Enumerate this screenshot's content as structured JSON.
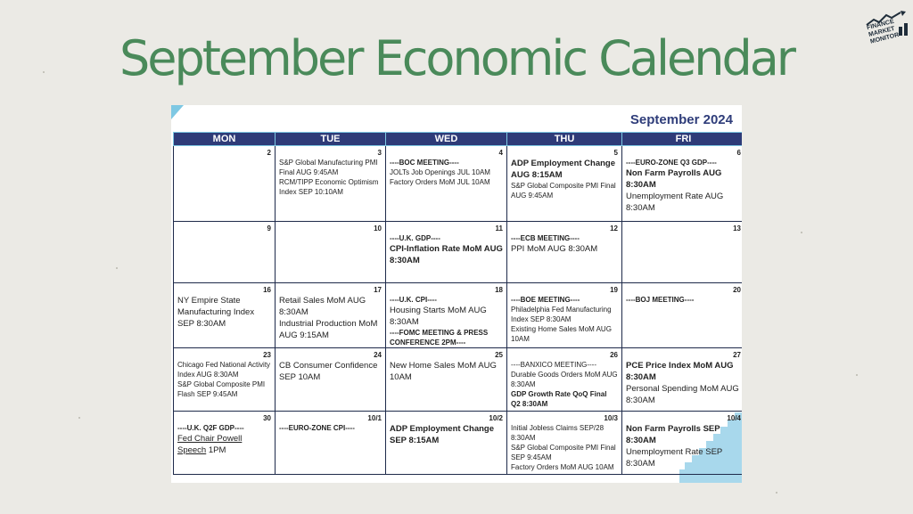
{
  "title": "September Economic Calendar",
  "logo": {
    "line1": "FINANCE",
    "line2": "MARKET",
    "line3": "MONITOR"
  },
  "calendar": {
    "month_label": "September 2024",
    "days": [
      "MON",
      "TUE",
      "WED",
      "THU",
      "FRI"
    ],
    "weeks": [
      [
        {
          "date": "2",
          "events": []
        },
        {
          "date": "3",
          "events": [
            {
              "text": "S&P Global Manufacturing PMI Final AUG 9:45AM",
              "style": "sm"
            },
            {
              "text": "RCM/TIPP Economic Optimism Index SEP 10:10AM",
              "style": "sm"
            }
          ]
        },
        {
          "date": "4",
          "events": [
            {
              "text": "----BOC MEETING----",
              "style": "sm-b"
            },
            {
              "text": "JOLTs Job Openings JUL 10AM",
              "style": "sm"
            },
            {
              "text": "Factory Orders MoM JUL 10AM",
              "style": "sm"
            }
          ]
        },
        {
          "date": "5",
          "events": [
            {
              "text": "ADP Employment Change AUG 8:15AM",
              "style": "lg-b"
            },
            {
              "text": "S&P Global Composite PMI Final AUG 9:45AM",
              "style": "sm"
            }
          ]
        },
        {
          "date": "6",
          "events": [
            {
              "text": "----EURO-ZONE Q3 GDP----",
              "style": "sm-b"
            },
            {
              "text": "Non Farm Payrolls AUG 8:30AM",
              "style": "lg-b"
            },
            {
              "text": "Unemployment Rate AUG 8:30AM",
              "style": "lg"
            }
          ]
        }
      ],
      [
        {
          "date": "9",
          "events": []
        },
        {
          "date": "10",
          "events": []
        },
        {
          "date": "11",
          "events": [
            {
              "text": "----U.K. GDP----",
              "style": "sm-b"
            },
            {
              "text": "CPI-Inflation Rate MoM AUG 8:30AM",
              "style": "lg-b"
            }
          ]
        },
        {
          "date": "12",
          "events": [
            {
              "text": "----ECB MEETING----",
              "style": "sm-b"
            },
            {
              "text": "PPI MoM AUG 8:30AM",
              "style": "lg"
            }
          ]
        },
        {
          "date": "13",
          "events": []
        }
      ],
      [
        {
          "date": "16",
          "events": [
            {
              "text": "NY Empire State Manufacturing Index SEP 8:30AM",
              "style": "lg"
            }
          ]
        },
        {
          "date": "17",
          "events": [
            {
              "text": "Retail Sales MoM AUG 8:30AM",
              "style": "lg"
            },
            {
              "text": "Industrial Production MoM AUG 9:15AM",
              "style": "lg"
            }
          ]
        },
        {
          "date": "18",
          "events": [
            {
              "text": "----U.K. CPI----",
              "style": "sm-b"
            },
            {
              "text": "Housing Starts MoM AUG 8:30AM",
              "style": "lg"
            },
            {
              "text": "----FOMC MEETING & PRESS CONFERENCE 2PM----",
              "style": "sm-b"
            }
          ]
        },
        {
          "date": "19",
          "events": [
            {
              "text": "----BOE MEETING----",
              "style": "sm-b"
            },
            {
              "text": "Philadelphia Fed Manufacturing Index SEP 8:30AM",
              "style": "sm"
            },
            {
              "text": "Existing Home Sales MoM AUG 10AM",
              "style": "sm"
            }
          ]
        },
        {
          "date": "20",
          "events": [
            {
              "text": "----BOJ MEETING----",
              "style": "sm-b"
            }
          ]
        }
      ],
      [
        {
          "date": "23",
          "events": [
            {
              "text": "Chicago Fed National Activity Index AUG 8:30AM",
              "style": "sm"
            },
            {
              "text": "S&P Global Composite PMI Flash SEP 9:45AM",
              "style": "sm"
            }
          ]
        },
        {
          "date": "24",
          "events": [
            {
              "text": "CB Consumer Confidence SEP 10AM",
              "style": "lg"
            }
          ]
        },
        {
          "date": "25",
          "events": [
            {
              "text": "New Home Sales MoM AUG 10AM",
              "style": "lg"
            }
          ]
        },
        {
          "date": "26",
          "events": [
            {
              "text": "----BANXICO MEETING----",
              "style": "sm"
            },
            {
              "text": "Durable Goods Orders MoM AUG 8:30AM",
              "style": "sm"
            },
            {
              "text": "GDP Growth Rate QoQ Final Q2 8:30AM",
              "style": "sm-b"
            }
          ]
        },
        {
          "date": "27",
          "events": [
            {
              "text": "PCE Price Index MoM AUG 8:30AM",
              "style": "lg-b"
            },
            {
              "text": "Personal Spending MoM AUG 8:30AM",
              "style": "lg"
            }
          ]
        }
      ],
      [
        {
          "date": "30",
          "events": [
            {
              "text": "----U.K. Q2F GDP----",
              "style": "sm-b"
            },
            {
              "text": "Fed Chair Powell Speech",
              "style": "lg-u",
              "suffix": " 1PM"
            }
          ]
        },
        {
          "date": "10/1",
          "events": [
            {
              "text": "----EURO-ZONE CPI----",
              "style": "sm-b"
            }
          ]
        },
        {
          "date": "10/2",
          "events": [
            {
              "text": "ADP Employment Change SEP 8:15AM",
              "style": "lg-b"
            }
          ]
        },
        {
          "date": "10/3",
          "events": [
            {
              "text": "Initial Jobless Claims SEP/28 8:30AM",
              "style": "sm"
            },
            {
              "text": "S&P Global Composite PMI Final SEP 9:45AM",
              "style": "sm"
            },
            {
              "text": "Factory Orders MoM AUG 10AM",
              "style": "sm"
            }
          ]
        },
        {
          "date": "10/4",
          "events": [
            {
              "text": "Non Farm Payrolls SEP 8:30AM",
              "style": "lg-b"
            },
            {
              "text": "Unemployment Rate SEP 8:30AM",
              "style": "lg"
            }
          ]
        }
      ]
    ]
  },
  "colors": {
    "title_green": "#4a8a5a",
    "header_navy": "#2e3b78",
    "accent_blue": "#7ec8e3",
    "background": "#ebeae5"
  }
}
